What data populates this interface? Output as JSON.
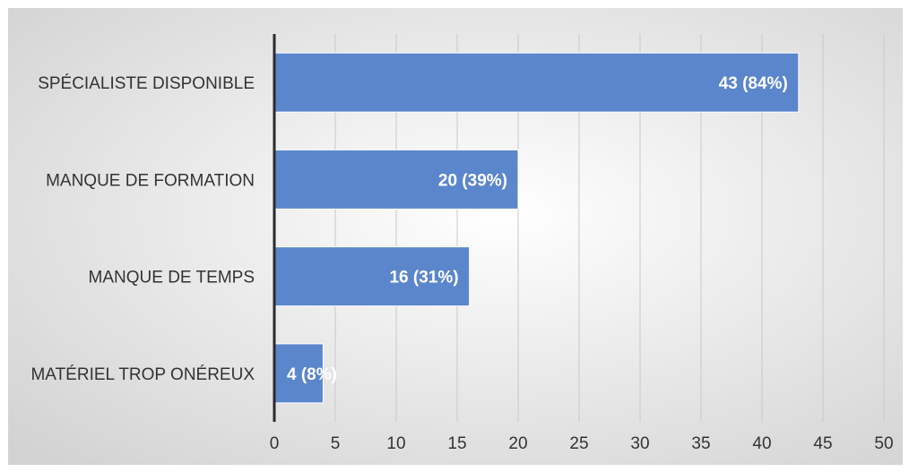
{
  "chart_data": {
    "type": "bar",
    "orientation": "horizontal",
    "title": "",
    "xlabel": "",
    "ylabel": "",
    "categories": [
      "SPÉCIALISTE DISPONIBLE",
      "MANQUE DE FORMATION",
      "MANQUE DE TEMPS",
      "MATÉRIEL TROP ONÉREUX"
    ],
    "values": [
      43,
      20,
      16,
      4
    ],
    "data_labels": [
      "43 (84%)",
      "20 (39%)",
      "16 (31%)",
      "4 (8%)"
    ],
    "xlim": [
      0,
      50
    ],
    "x_ticks": [
      0,
      5,
      10,
      15,
      20,
      25,
      30,
      35,
      40,
      45,
      50
    ],
    "grid": "vertical",
    "legend": "none",
    "colors": {
      "bar": "#5b86cc",
      "bar_edge": "#ffffff",
      "grid": "#c9c9c9",
      "axis": "#2b2b2b",
      "text": "#333333",
      "data_label": "#ffffff",
      "background_center": "#ffffff",
      "background_edge": "#d2d2d2"
    }
  }
}
